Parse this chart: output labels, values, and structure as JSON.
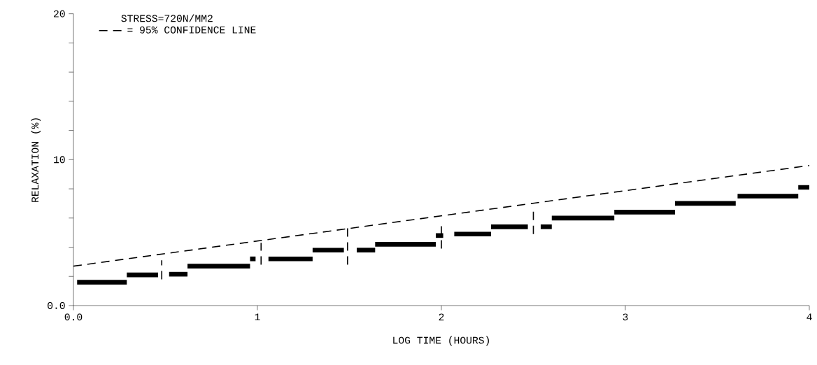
{
  "chart_data": {
    "type": "line",
    "xlabel": "LOG TIME (HOURS)",
    "ylabel": "RELAXATION (%)",
    "annotations": [
      "STRESS=720N/MM2"
    ],
    "xlim": [
      0,
      4
    ],
    "ylim": [
      0,
      20
    ],
    "xticks": [
      {
        "value": 0,
        "label": "0.0"
      },
      1,
      2,
      3,
      4
    ],
    "yticks": [
      {
        "value": 0,
        "label": "0.0"
      },
      {
        "value": 2,
        "label": null
      },
      {
        "value": 4,
        "label": null
      },
      {
        "value": 6,
        "label": null
      },
      {
        "value": 8,
        "label": null
      },
      10,
      {
        "value": 12,
        "label": null
      },
      {
        "value": 14,
        "label": null
      },
      {
        "value": 16,
        "label": null
      },
      {
        "value": 18,
        "label": null
      },
      20
    ],
    "legend": "top left",
    "grid": false,
    "series": [
      {
        "color": "#000000",
        "line_style": "solid",
        "x": [
          0.02,
          0.29
        ],
        "values": [
          1.6,
          1.6
        ]
      },
      {
        "color": "#000000",
        "line_style": "solid",
        "x": [
          0.29,
          0.46
        ],
        "values": [
          2.1,
          2.1
        ]
      },
      {
        "color": "#000000",
        "line_style": "solid",
        "x": [
          0.52,
          0.62
        ],
        "values": [
          2.15,
          2.15
        ]
      },
      {
        "color": "#000000",
        "line_style": "solid",
        "x": [
          0.62,
          0.96
        ],
        "values": [
          2.7,
          2.7
        ]
      },
      {
        "color": "#000000",
        "line_style": "solid",
        "x": [
          0.96,
          0.99
        ],
        "values": [
          3.2,
          3.2
        ]
      },
      {
        "color": "#000000",
        "line_style": "solid",
        "x": [
          1.06,
          1.3
        ],
        "values": [
          3.2,
          3.2
        ]
      },
      {
        "color": "#000000",
        "line_style": "solid",
        "x": [
          1.3,
          1.47
        ],
        "values": [
          3.8,
          3.8
        ]
      },
      {
        "color": "#000000",
        "line_style": "solid",
        "x": [
          1.54,
          1.64
        ],
        "values": [
          3.8,
          3.8
        ]
      },
      {
        "color": "#000000",
        "line_style": "solid",
        "x": [
          1.64,
          1.97
        ],
        "values": [
          4.2,
          4.2
        ]
      },
      {
        "color": "#000000",
        "line_style": "solid",
        "x": [
          1.97,
          2.01
        ],
        "values": [
          4.8,
          4.8
        ]
      },
      {
        "color": "#000000",
        "line_style": "solid",
        "x": [
          2.07,
          2.27
        ],
        "values": [
          4.9,
          4.9
        ]
      },
      {
        "color": "#000000",
        "line_style": "solid",
        "x": [
          2.27,
          2.47
        ],
        "values": [
          5.4,
          5.4
        ]
      },
      {
        "color": "#000000",
        "line_style": "solid",
        "x": [
          2.54,
          2.6
        ],
        "values": [
          5.4,
          5.4
        ]
      },
      {
        "color": "#000000",
        "line_style": "solid",
        "x": [
          2.6,
          2.94
        ],
        "values": [
          6.0,
          6.0
        ]
      },
      {
        "color": "#000000",
        "line_style": "solid",
        "x": [
          2.94,
          3.27
        ],
        "values": [
          6.4,
          6.4
        ]
      },
      {
        "color": "#000000",
        "line_style": "solid",
        "x": [
          3.27,
          3.6
        ],
        "values": [
          7.0,
          7.0
        ]
      },
      {
        "color": "#000000",
        "line_style": "solid",
        "x": [
          3.61,
          3.94
        ],
        "values": [
          7.5,
          7.5
        ]
      },
      {
        "color": "#000000",
        "line_style": "solid",
        "x": [
          3.94,
          4.0
        ],
        "values": [
          8.1,
          8.1
        ]
      },
      {
        "color": "#000000",
        "line_style": "dashed",
        "x": [
          0.48,
          0.48
        ],
        "values": [
          1.8,
          3.1
        ]
      },
      {
        "color": "#000000",
        "line_style": "dashed",
        "x": [
          1.02,
          1.02
        ],
        "values": [
          2.8,
          4.3
        ]
      },
      {
        "color": "#000000",
        "line_style": "dashed",
        "x": [
          1.49,
          1.49
        ],
        "values": [
          2.8,
          5.3
        ]
      },
      {
        "color": "#000000",
        "line_style": "dashed",
        "x": [
          2.0,
          2.0
        ],
        "values": [
          3.9,
          5.5
        ]
      },
      {
        "color": "#000000",
        "line_style": "dashed",
        "x": [
          2.5,
          2.5
        ],
        "values": [
          4.9,
          6.5
        ]
      },
      {
        "name": "= 95% CONFIDENCE LINE",
        "color": "#000000",
        "line_style": "dashed",
        "x": [
          0,
          4
        ],
        "values": [
          2.7,
          9.6
        ]
      }
    ]
  }
}
